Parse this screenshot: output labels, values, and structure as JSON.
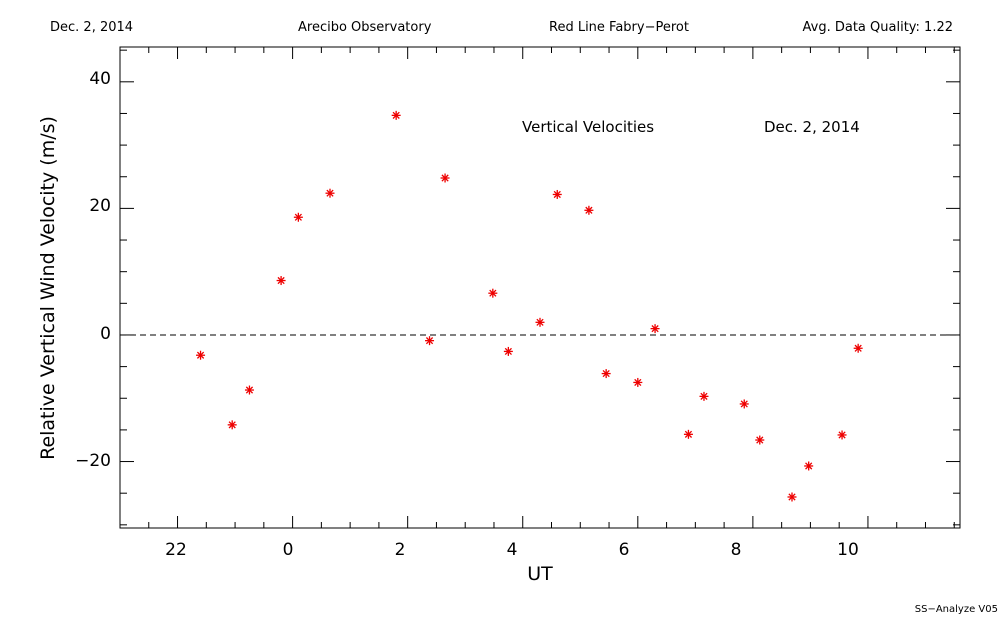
{
  "header": {
    "date": "Dec. 2, 2014",
    "observatory": "Arecibo Observatory",
    "instrument": "Red Line Fabry−Perot",
    "quality": "Avg. Data Quality: 1.22"
  },
  "footer": {
    "version": "SS−Analyze V05"
  },
  "chart_data": {
    "type": "scatter",
    "title": "Vertical Velocities",
    "annotation_date": "Dec. 2, 2014",
    "xlabel": "UT",
    "ylabel": "Relative Vertical Wind Velocity (m/s)",
    "xlim": [
      21.0,
      11.6
    ],
    "xlim_note_hours_wrap": true,
    "x_ticks": [
      "22",
      "0",
      "2",
      "4",
      "6",
      "8",
      "10"
    ],
    "y_ticks": [
      "−20",
      "0",
      "20",
      "40"
    ],
    "ylim": [
      -30.5,
      45.5
    ],
    "zero_line": "dashed",
    "marker": "asterisk",
    "marker_color": "#ee0000",
    "points": [
      {
        "ut": 22.4,
        "v": -3.2
      },
      {
        "ut": 22.95,
        "v": -14.2
      },
      {
        "ut": 23.25,
        "v": -8.7
      },
      {
        "ut": 23.8,
        "v": 8.6
      },
      {
        "ut": 0.1,
        "v": 18.6
      },
      {
        "ut": 0.65,
        "v": 22.4
      },
      {
        "ut": 1.8,
        "v": 34.7
      },
      {
        "ut": 2.38,
        "v": -0.9
      },
      {
        "ut": 2.65,
        "v": 24.8
      },
      {
        "ut": 3.48,
        "v": 6.6
      },
      {
        "ut": 3.75,
        "v": -2.6
      },
      {
        "ut": 4.3,
        "v": 2.0
      },
      {
        "ut": 4.6,
        "v": 22.2
      },
      {
        "ut": 5.15,
        "v": 19.7
      },
      {
        "ut": 5.45,
        "v": -6.1
      },
      {
        "ut": 6.0,
        "v": -7.5
      },
      {
        "ut": 6.3,
        "v": 1.0
      },
      {
        "ut": 6.88,
        "v": -15.7
      },
      {
        "ut": 7.15,
        "v": -9.7
      },
      {
        "ut": 7.85,
        "v": -10.9
      },
      {
        "ut": 8.12,
        "v": -16.6
      },
      {
        "ut": 8.68,
        "v": -25.6
      },
      {
        "ut": 8.97,
        "v": -20.7
      },
      {
        "ut": 9.55,
        "v": -15.8
      },
      {
        "ut": 9.83,
        "v": -2.1
      }
    ]
  }
}
